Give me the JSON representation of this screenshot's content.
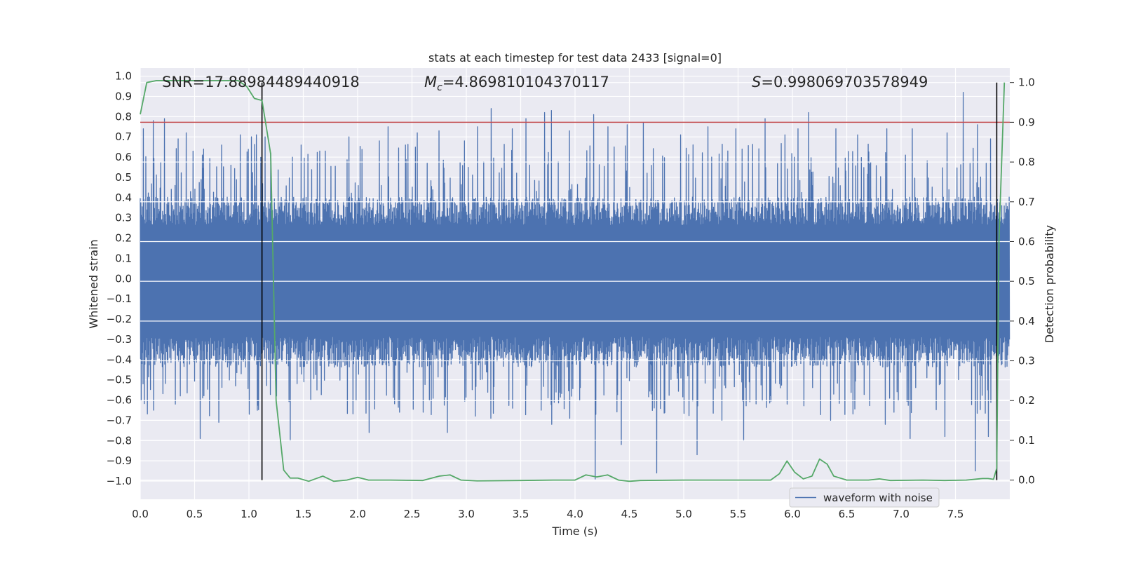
{
  "chart_data": {
    "type": "line",
    "title": "stats at each timestep for test data 2433 [signal=0]",
    "xlabel": "Time (s)",
    "ylabel": "Whitened strain",
    "y2label": "Detection probability",
    "xlim": [
      0,
      8
    ],
    "ylim": [
      -1.09,
      1.04
    ],
    "y2lim": [
      -0.0483,
      1.0365
    ],
    "xticks": [
      "0.0",
      "0.5",
      "1.0",
      "1.5",
      "2.0",
      "2.5",
      "3.0",
      "3.5",
      "4.0",
      "4.5",
      "5.0",
      "5.5",
      "6.0",
      "6.5",
      "7.0",
      "7.5"
    ],
    "xtick_values": [
      0,
      0.5,
      1,
      1.5,
      2,
      2.5,
      3,
      3.5,
      4,
      4.5,
      5,
      5.5,
      6,
      6.5,
      7,
      7.5
    ],
    "yticks": [
      "1.0",
      "0.9",
      "0.8",
      "0.7",
      "0.6",
      "0.5",
      "0.4",
      "0.3",
      "0.2",
      "0.1",
      "0.0",
      "−0.1",
      "−0.2",
      "−0.3",
      "−0.4",
      "−0.5",
      "−0.6",
      "−0.7",
      "−0.8",
      "−0.9",
      "−1.0"
    ],
    "ytick_values": [
      1.0,
      0.9,
      0.8,
      0.7,
      0.6,
      0.5,
      0.4,
      0.3,
      0.2,
      0.1,
      0.0,
      -0.1,
      -0.2,
      -0.3,
      -0.4,
      -0.5,
      -0.6,
      -0.7,
      -0.8,
      -0.9,
      -1.0
    ],
    "y2ticks": [
      "1.0",
      "0.9",
      "0.8",
      "0.7",
      "0.6",
      "0.5",
      "0.4",
      "0.3",
      "0.2",
      "0.1",
      "0.0"
    ],
    "y2tick_values": [
      1.0,
      0.9,
      0.8,
      0.7,
      0.6,
      0.5,
      0.4,
      0.3,
      0.2,
      0.1,
      0.0
    ],
    "annotations": {
      "snr": "SNR=17.88984489440918",
      "mc_symbol": "M",
      "mc_sub": "c",
      "mc_value": "=4.869810104370117",
      "s_symbol": "S",
      "s_value": "=0.998069703578949"
    },
    "legend": {
      "label": "waveform with noise",
      "location": "lower-right"
    },
    "threshold": {
      "value": 0.9,
      "axis": "y2",
      "color": "#c44e52"
    },
    "vlines": [
      1.12,
      7.88
    ],
    "waveform": {
      "name": "waveform with noise",
      "color": "#4c72b0",
      "duration_s": 8,
      "n_samples": 1400,
      "envelope_upper": 0.35,
      "envelope_lower": -0.38,
      "peaks": [
        {
          "t": 0.03,
          "v": 0.74
        },
        {
          "t": 0.12,
          "v": 0.78
        },
        {
          "t": 0.22,
          "v": 0.79
        },
        {
          "t": 0.35,
          "v": 0.69
        },
        {
          "t": 0.42,
          "v": 0.72
        },
        {
          "t": 0.58,
          "v": 0.64
        },
        {
          "t": 0.75,
          "v": 0.66
        },
        {
          "t": 0.92,
          "v": 0.71
        },
        {
          "t": 1.02,
          "v": 0.7
        },
        {
          "t": 1.07,
          "v": 0.71
        },
        {
          "t": 1.15,
          "v": 0.7
        },
        {
          "t": 1.48,
          "v": 0.66
        },
        {
          "t": 1.65,
          "v": 0.63
        },
        {
          "t": 1.92,
          "v": 0.7
        },
        {
          "t": 2.2,
          "v": 0.68
        },
        {
          "t": 2.28,
          "v": 0.75
        },
        {
          "t": 2.55,
          "v": 0.72
        },
        {
          "t": 2.75,
          "v": 0.73
        },
        {
          "t": 2.98,
          "v": 0.68
        },
        {
          "t": 3.1,
          "v": 0.75
        },
        {
          "t": 3.23,
          "v": 0.84
        },
        {
          "t": 3.42,
          "v": 0.74
        },
        {
          "t": 3.55,
          "v": 0.79
        },
        {
          "t": 3.72,
          "v": 0.82
        },
        {
          "t": 3.78,
          "v": 0.83
        },
        {
          "t": 3.95,
          "v": 0.73
        },
        {
          "t": 4.17,
          "v": 0.81
        },
        {
          "t": 4.3,
          "v": 0.75
        },
        {
          "t": 4.48,
          "v": 0.76
        },
        {
          "t": 4.63,
          "v": 0.77
        },
        {
          "t": 4.97,
          "v": 0.71
        },
        {
          "t": 5.22,
          "v": 0.75
        },
        {
          "t": 5.48,
          "v": 0.74
        },
        {
          "t": 5.75,
          "v": 0.79
        },
        {
          "t": 5.93,
          "v": 0.71
        },
        {
          "t": 6.05,
          "v": 0.74
        },
        {
          "t": 6.15,
          "v": 0.82
        },
        {
          "t": 6.4,
          "v": 0.74
        },
        {
          "t": 6.6,
          "v": 0.71
        },
        {
          "t": 6.87,
          "v": 0.74
        },
        {
          "t": 7.1,
          "v": 0.74
        },
        {
          "t": 7.42,
          "v": 0.72
        },
        {
          "t": 7.57,
          "v": 0.92
        },
        {
          "t": 7.7,
          "v": 0.76
        },
        {
          "t": 7.82,
          "v": 0.69
        }
      ],
      "troughs": [
        {
          "t": 0.02,
          "v": -0.52
        },
        {
          "t": 0.12,
          "v": -0.65
        },
        {
          "t": 0.32,
          "v": -0.62
        },
        {
          "t": 0.55,
          "v": -0.79
        },
        {
          "t": 0.72,
          "v": -0.71
        },
        {
          "t": 1.0,
          "v": -0.67
        },
        {
          "t": 1.25,
          "v": -0.58
        },
        {
          "t": 1.38,
          "v": -0.8
        },
        {
          "t": 1.62,
          "v": -0.55
        },
        {
          "t": 1.98,
          "v": -0.6
        },
        {
          "t": 2.1,
          "v": -0.76
        },
        {
          "t": 2.38,
          "v": -0.66
        },
        {
          "t": 2.6,
          "v": -0.66
        },
        {
          "t": 2.82,
          "v": -0.76
        },
        {
          "t": 3.22,
          "v": -0.69
        },
        {
          "t": 3.42,
          "v": -0.64
        },
        {
          "t": 3.78,
          "v": -0.72
        },
        {
          "t": 3.95,
          "v": -0.69
        },
        {
          "t": 4.18,
          "v": -0.99
        },
        {
          "t": 4.42,
          "v": -0.82
        },
        {
          "t": 4.75,
          "v": -0.96
        },
        {
          "t": 5.12,
          "v": -0.87
        },
        {
          "t": 5.35,
          "v": -0.7
        },
        {
          "t": 5.55,
          "v": -0.8
        },
        {
          "t": 5.95,
          "v": -0.62
        },
        {
          "t": 6.35,
          "v": -0.7
        },
        {
          "t": 6.85,
          "v": -0.72
        },
        {
          "t": 7.08,
          "v": -0.79
        },
        {
          "t": 7.4,
          "v": -0.78
        },
        {
          "t": 7.68,
          "v": -0.95
        },
        {
          "t": 7.8,
          "v": -0.78
        }
      ]
    },
    "probability": {
      "name": "detection probability",
      "color": "#55a868",
      "x": [
        0.0,
        0.06,
        0.15,
        0.5,
        0.9,
        0.98,
        1.05,
        1.12,
        1.2,
        1.25,
        1.32,
        1.38,
        1.45,
        1.55,
        1.68,
        1.78,
        1.9,
        2.0,
        2.1,
        2.3,
        2.6,
        2.75,
        2.85,
        2.95,
        3.1,
        3.5,
        3.8,
        4.0,
        4.1,
        4.2,
        4.3,
        4.4,
        4.5,
        4.6,
        5.0,
        5.5,
        5.8,
        5.88,
        5.95,
        6.02,
        6.1,
        6.18,
        6.25,
        6.32,
        6.38,
        6.5,
        6.7,
        6.8,
        6.9,
        7.2,
        7.4,
        7.6,
        7.75,
        7.8,
        7.85,
        7.88,
        7.9,
        7.95
      ],
      "y": [
        0.92,
        1.0,
        1.005,
        1.005,
        1.005,
        0.99,
        0.96,
        0.955,
        0.82,
        0.2,
        0.025,
        0.005,
        0.005,
        -0.003,
        0.01,
        -0.003,
        0.0,
        0.007,
        0.0,
        0.0,
        -0.001,
        0.01,
        0.013,
        0.0,
        -0.002,
        -0.001,
        0.0,
        0.0,
        0.013,
        0.008,
        0.013,
        0.0,
        -0.003,
        -0.001,
        0.0,
        0.0,
        0.0,
        0.016,
        0.048,
        0.02,
        0.003,
        0.01,
        0.053,
        0.04,
        0.01,
        0.0,
        0.0,
        0.003,
        -0.001,
        0.0,
        -0.001,
        0.0,
        0.004,
        0.004,
        0.002,
        0.03,
        0.6,
        1.0
      ]
    }
  }
}
